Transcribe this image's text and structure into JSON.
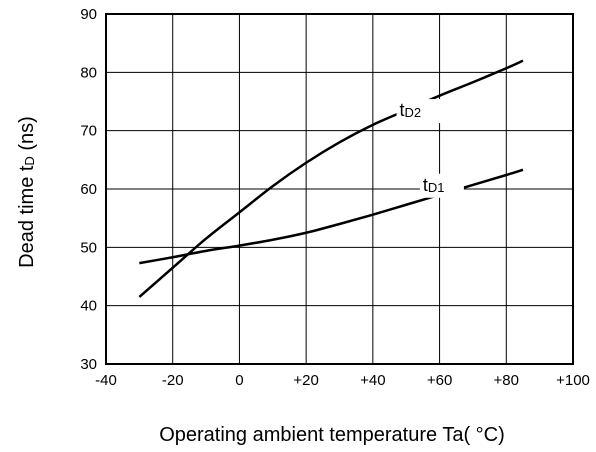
{
  "chart_data": {
    "type": "line",
    "xlabel": "Operating ambient temperature Ta( °C)",
    "ylabel_main": "Dead time t",
    "ylabel_sub": "D",
    "ylabel_unit": " (ns)",
    "xlim": [
      -40,
      100
    ],
    "ylim": [
      30,
      90
    ],
    "x_ticks": [
      -40,
      -20,
      0,
      20,
      40,
      60,
      80,
      100
    ],
    "x_tick_labels": [
      "-40",
      "-20",
      "0",
      "+20",
      "+40",
      "+60",
      "+80",
      "+100"
    ],
    "y_ticks": [
      30,
      40,
      50,
      60,
      70,
      80,
      90
    ],
    "y_tick_labels": [
      "30",
      "40",
      "50",
      "60",
      "70",
      "80",
      "90"
    ],
    "grid": true,
    "series": [
      {
        "name": "tD2",
        "label_main": "t",
        "label_sub": "D2",
        "x": [
          -30,
          -20,
          -10,
          0,
          10,
          20,
          30,
          40,
          50,
          60,
          70,
          80,
          85
        ],
        "y": [
          41.5,
          46.5,
          51.5,
          56,
          60.5,
          64.5,
          68,
          71,
          73.5,
          76,
          78.3,
          80.7,
          82
        ]
      },
      {
        "name": "tD1",
        "label_main": "t",
        "label_sub": "D1",
        "x": [
          -30,
          -20,
          -10,
          0,
          10,
          20,
          30,
          40,
          50,
          60,
          70,
          80,
          85
        ],
        "y": [
          47.3,
          48.3,
          49.4,
          50.3,
          51.3,
          52.5,
          54,
          55.6,
          57.3,
          59,
          60.7,
          62.4,
          63.3
        ]
      }
    ]
  }
}
